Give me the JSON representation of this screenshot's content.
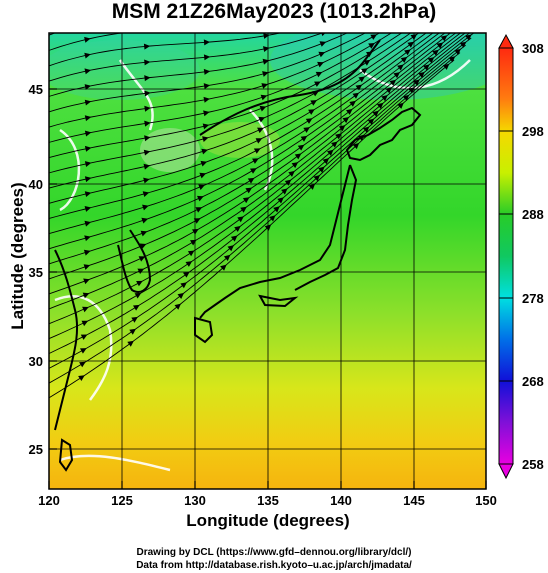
{
  "title": "MSM 21Z26May2023 (1013.2hPa)",
  "axes": {
    "xlabel": "Longitude (degrees)",
    "ylabel": "Latitude  (degrees)",
    "x_ticks": [
      "120",
      "125",
      "130",
      "135",
      "140",
      "145",
      "150"
    ],
    "y_ticks": [
      "25",
      "30",
      "35",
      "40",
      "45"
    ],
    "x_range": [
      120,
      150
    ],
    "y_range": [
      22.4,
      47.6
    ]
  },
  "colorbar": {
    "ticks": [
      "308",
      "298",
      "288",
      "278",
      "268",
      "258"
    ],
    "range": [
      258,
      308
    ],
    "colors": {
      "c308": "#ff3b1a",
      "c298": "#e8f000",
      "c288": "#22cc22",
      "c278": "#00e0e0",
      "c268": "#1010e0",
      "c258": "#e000e0"
    }
  },
  "credits": {
    "line1": "Drawing by DCL (https://www.gfd–dennou.org/library/dcl/)",
    "line2": "Data from http://database.rish.kyoto–u.ac.jp/arch/jmadata/"
  }
}
